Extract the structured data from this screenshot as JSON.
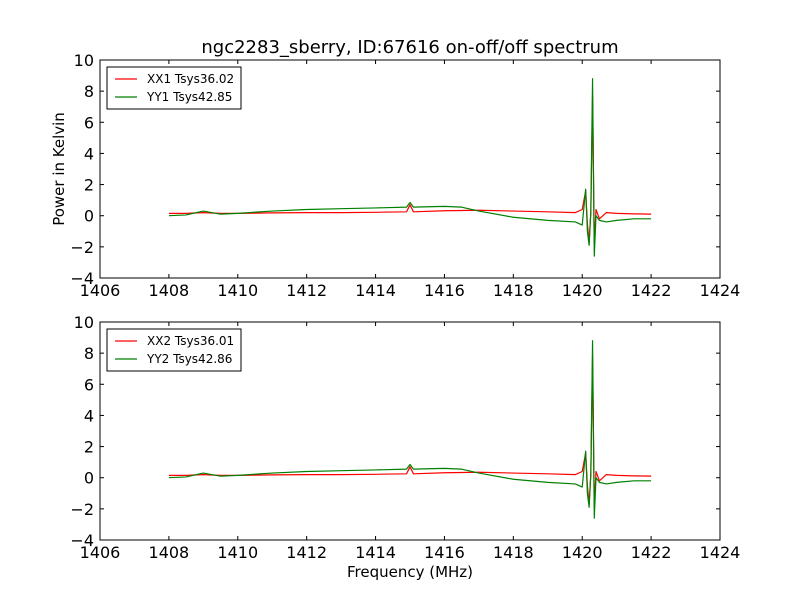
{
  "figure": {
    "title": "ngc2283_sberry, ID:67616 on-off/off spectrum",
    "ylabel_top": "Power in Kelvin",
    "xlabel_bottom": "Frequency (MHz)"
  },
  "chart_data": [
    {
      "type": "line",
      "title": "ngc2283_sberry, ID:67616 on-off/off spectrum",
      "xlabel": "",
      "ylabel": "Power in Kelvin",
      "xlim": [
        1406,
        1424
      ],
      "ylim": [
        -4,
        10
      ],
      "xticks": [
        "1406",
        "1408",
        "1410",
        "1412",
        "1414",
        "1416",
        "1418",
        "1420",
        "1422",
        "1424"
      ],
      "yticks": [
        "−4",
        "−2",
        "0",
        "2",
        "4",
        "6",
        "8",
        "10"
      ],
      "legend_position": "top-left",
      "grid": false,
      "series": [
        {
          "name": "XX1 Tsys36.02",
          "color": "#ff0000",
          "x": [
            1408.0,
            1408.5,
            1409.0,
            1409.5,
            1410.0,
            1411.0,
            1412.0,
            1413.0,
            1414.0,
            1414.9,
            1415.0,
            1415.1,
            1416.0,
            1417.0,
            1418.0,
            1419.0,
            1419.8,
            1420.0,
            1420.1,
            1420.15,
            1420.2,
            1420.25,
            1420.3,
            1420.35,
            1420.4,
            1420.5,
            1420.7,
            1421.0,
            1421.5,
            1422.0
          ],
          "y": [
            0.15,
            0.15,
            0.2,
            0.15,
            0.15,
            0.18,
            0.2,
            0.2,
            0.22,
            0.25,
            0.7,
            0.25,
            0.32,
            0.35,
            0.3,
            0.25,
            0.2,
            0.4,
            1.6,
            -0.5,
            -1.7,
            0.2,
            7.7,
            -1.8,
            0.4,
            -0.2,
            0.2,
            0.15,
            0.12,
            0.1
          ]
        },
        {
          "name": "YY1 Tsys42.85",
          "color": "#008000",
          "x": [
            1408.0,
            1408.5,
            1409.0,
            1409.5,
            1410.0,
            1411.0,
            1412.0,
            1413.0,
            1414.0,
            1414.9,
            1415.0,
            1415.1,
            1416.0,
            1416.5,
            1417.0,
            1418.0,
            1419.0,
            1419.8,
            1420.0,
            1420.1,
            1420.15,
            1420.2,
            1420.25,
            1420.3,
            1420.35,
            1420.4,
            1420.5,
            1420.7,
            1421.0,
            1421.5,
            1422.0
          ],
          "y": [
            0.0,
            0.05,
            0.3,
            0.1,
            0.15,
            0.3,
            0.4,
            0.45,
            0.5,
            0.55,
            0.85,
            0.55,
            0.6,
            0.55,
            0.3,
            -0.1,
            -0.3,
            -0.4,
            -0.6,
            1.7,
            -1.0,
            -1.9,
            0.3,
            8.8,
            -2.6,
            0.0,
            -0.3,
            -0.4,
            -0.3,
            -0.2,
            -0.2
          ]
        }
      ]
    },
    {
      "type": "line",
      "title": "",
      "xlabel": "Frequency (MHz)",
      "ylabel": "",
      "xlim": [
        1406,
        1424
      ],
      "ylim": [
        -4,
        10
      ],
      "xticks": [
        "1406",
        "1408",
        "1410",
        "1412",
        "1414",
        "1416",
        "1418",
        "1420",
        "1422",
        "1424"
      ],
      "yticks": [
        "−4",
        "−2",
        "0",
        "2",
        "4",
        "6",
        "8",
        "10"
      ],
      "legend_position": "top-left",
      "grid": false,
      "series": [
        {
          "name": "XX2 Tsys36.01",
          "color": "#ff0000",
          "x": [
            1408.0,
            1408.5,
            1409.0,
            1409.5,
            1410.0,
            1411.0,
            1412.0,
            1413.0,
            1414.0,
            1414.9,
            1415.0,
            1415.1,
            1416.0,
            1417.0,
            1418.0,
            1419.0,
            1419.8,
            1420.0,
            1420.1,
            1420.15,
            1420.2,
            1420.25,
            1420.3,
            1420.35,
            1420.4,
            1420.5,
            1420.7,
            1421.0,
            1421.5,
            1422.0
          ],
          "y": [
            0.15,
            0.15,
            0.2,
            0.15,
            0.15,
            0.18,
            0.2,
            0.2,
            0.22,
            0.25,
            0.7,
            0.25,
            0.32,
            0.35,
            0.3,
            0.25,
            0.2,
            0.4,
            1.6,
            -0.5,
            -1.7,
            0.2,
            7.7,
            -1.8,
            0.4,
            -0.2,
            0.2,
            0.15,
            0.12,
            0.1
          ]
        },
        {
          "name": "YY2 Tsys42.86",
          "color": "#008000",
          "x": [
            1408.0,
            1408.5,
            1409.0,
            1409.5,
            1410.0,
            1411.0,
            1412.0,
            1413.0,
            1414.0,
            1414.9,
            1415.0,
            1415.1,
            1416.0,
            1416.5,
            1417.0,
            1418.0,
            1419.0,
            1419.8,
            1420.0,
            1420.1,
            1420.15,
            1420.2,
            1420.25,
            1420.3,
            1420.35,
            1420.4,
            1420.5,
            1420.7,
            1421.0,
            1421.5,
            1422.0
          ],
          "y": [
            0.0,
            0.05,
            0.3,
            0.1,
            0.15,
            0.3,
            0.4,
            0.45,
            0.5,
            0.55,
            0.85,
            0.55,
            0.6,
            0.55,
            0.3,
            -0.1,
            -0.3,
            -0.4,
            -0.6,
            1.7,
            -1.0,
            -1.9,
            0.3,
            8.8,
            -2.6,
            0.0,
            -0.3,
            -0.4,
            -0.3,
            -0.2,
            -0.2
          ]
        }
      ]
    }
  ]
}
